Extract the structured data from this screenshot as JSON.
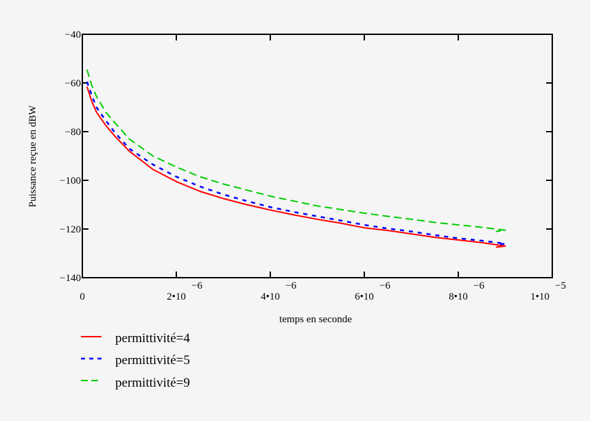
{
  "chart_data": {
    "type": "line",
    "title": "",
    "xlabel": "temps en seconde",
    "ylabel": "Puissance reçue en dBW",
    "xlim": [
      0,
      1e-05
    ],
    "ylim": [
      -140,
      -40
    ],
    "grid": false,
    "legend_position": "bottom-left",
    "y_ticks": [
      {
        "value": -40,
        "label": "−40"
      },
      {
        "value": -60,
        "label": "−60"
      },
      {
        "value": -80,
        "label": "−80"
      },
      {
        "value": -100,
        "label": "−100"
      },
      {
        "value": -120,
        "label": "−120"
      },
      {
        "value": -140,
        "label": "−140"
      }
    ],
    "x_ticks": [
      {
        "value": 0,
        "mantissa": "0",
        "exponent": ""
      },
      {
        "value": 2e-06,
        "mantissa": "2•10",
        "exponent": "−6"
      },
      {
        "value": 4e-06,
        "mantissa": "4•10",
        "exponent": "−6"
      },
      {
        "value": 6e-06,
        "mantissa": "6•10",
        "exponent": "−6"
      },
      {
        "value": 8e-06,
        "mantissa": "8•10",
        "exponent": "−6"
      },
      {
        "value": 1e-05,
        "mantissa": "1•10",
        "exponent": "−5"
      }
    ],
    "x": [
      1e-07,
      2e-07,
      3e-07,
      5e-07,
      7e-07,
      1e-06,
      1.5e-06,
      2e-06,
      2.5e-06,
      3e-06,
      3.5e-06,
      4e-06,
      4.5e-06,
      5e-06,
      5.5e-06,
      6e-06,
      6.5e-06,
      7e-06,
      7.5e-06,
      8e-06,
      8.5e-06,
      9e-06,
      8.8e-06
    ],
    "series": [
      {
        "name": "permittivité=4",
        "color": "#ff0000",
        "dash": "solid",
        "values": [
          -61.5,
          -67.5,
          -72,
          -77.5,
          -82,
          -88,
          -95.5,
          -100.5,
          -104.5,
          -107.5,
          -110,
          -112.2,
          -114.2,
          -116,
          -117.6,
          -119.5,
          -120.6,
          -122,
          -123.4,
          -124.5,
          -125.6,
          -127,
          -127.5
        ]
      },
      {
        "name": "permittivité=5",
        "color": "#0000ff",
        "dash": "dotted",
        "values": [
          -59.5,
          -65,
          -70,
          -75.5,
          -80.5,
          -87,
          -93.5,
          -98.5,
          -102.5,
          -105.8,
          -108.5,
          -111,
          -113,
          -114.8,
          -116.5,
          -118.3,
          -119.8,
          -121,
          -122.5,
          -123.8,
          -124.8,
          -126,
          -126.5
        ]
      },
      {
        "name": "permittivité=9",
        "color": "#00cc00",
        "dash": "dashed",
        "values": [
          -54.5,
          -61,
          -65.5,
          -72,
          -76.5,
          -83,
          -90,
          -94.5,
          -98.5,
          -101.5,
          -104,
          -106.5,
          -108.5,
          -110.5,
          -112,
          -113.5,
          -114.8,
          -116,
          -117.3,
          -118.3,
          -119.3,
          -120.5,
          -121
        ]
      }
    ]
  }
}
